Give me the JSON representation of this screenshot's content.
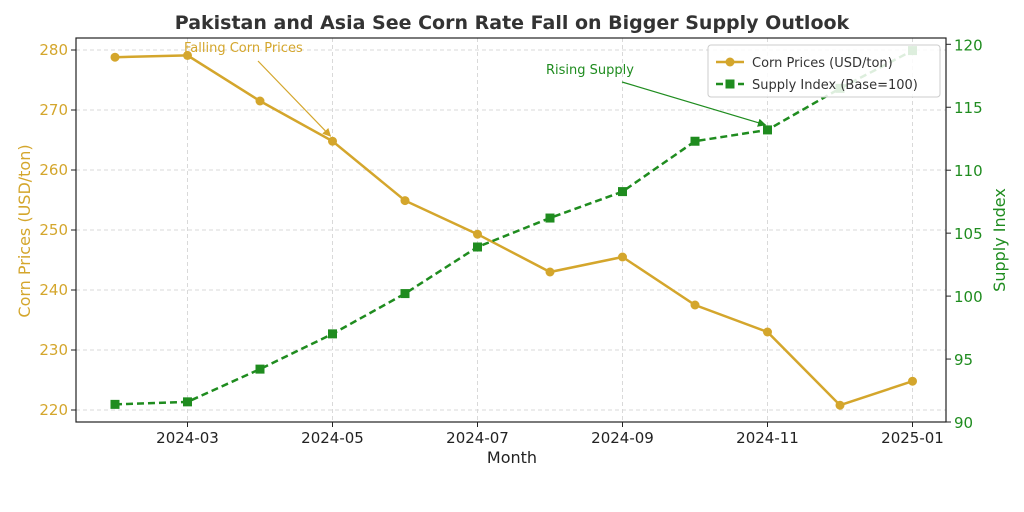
{
  "chart_data": {
    "type": "line",
    "title": "Pakistan and Asia See Corn Rate Fall on Bigger Supply Outlook",
    "xlabel": "Month",
    "ylabel_left": "Corn Prices (USD/ton)",
    "ylabel_right": "Supply Index",
    "x": [
      "2024-02",
      "2024-03",
      "2024-04",
      "2024-05",
      "2024-06",
      "2024-07",
      "2024-08",
      "2024-09",
      "2024-10",
      "2024-11",
      "2024-12",
      "2025-01"
    ],
    "x_tick_labels": [
      "2024-03",
      "2024-05",
      "2024-07",
      "2024-09",
      "2024-11",
      "2025-01"
    ],
    "ylim_left": [
      218,
      282
    ],
    "yticks_left": [
      "220",
      "230",
      "240",
      "250",
      "260",
      "270",
      "280"
    ],
    "ylim_right": [
      90,
      120.5
    ],
    "yticks_right": [
      "90",
      "95",
      "100",
      "105",
      "110",
      "115",
      "120"
    ],
    "grid": true,
    "legend_position": "top-right",
    "series": [
      {
        "name": "Corn Prices (USD/ton)",
        "axis": "left",
        "color": "#d4a62c",
        "style": "solid",
        "marker": "circle",
        "values": [
          278.8,
          279.1,
          271.5,
          264.8,
          254.9,
          249.3,
          243.0,
          245.5,
          237.5,
          233.0,
          220.8,
          224.8
        ]
      },
      {
        "name": "Supply Index (Base=100)",
        "axis": "right",
        "color": "#1f8c1f",
        "style": "dashed",
        "marker": "square",
        "values": [
          91.4,
          91.6,
          94.2,
          97.0,
          100.2,
          103.9,
          106.2,
          108.3,
          112.3,
          113.2,
          116.5,
          119.5
        ]
      }
    ],
    "annotations": [
      {
        "text": "Falling Corn Prices",
        "series": 0,
        "point_index": 3,
        "color": "#d4a62c"
      },
      {
        "text": "Rising Supply",
        "series": 1,
        "point_index": 9,
        "color": "#1f8c1f"
      }
    ]
  }
}
